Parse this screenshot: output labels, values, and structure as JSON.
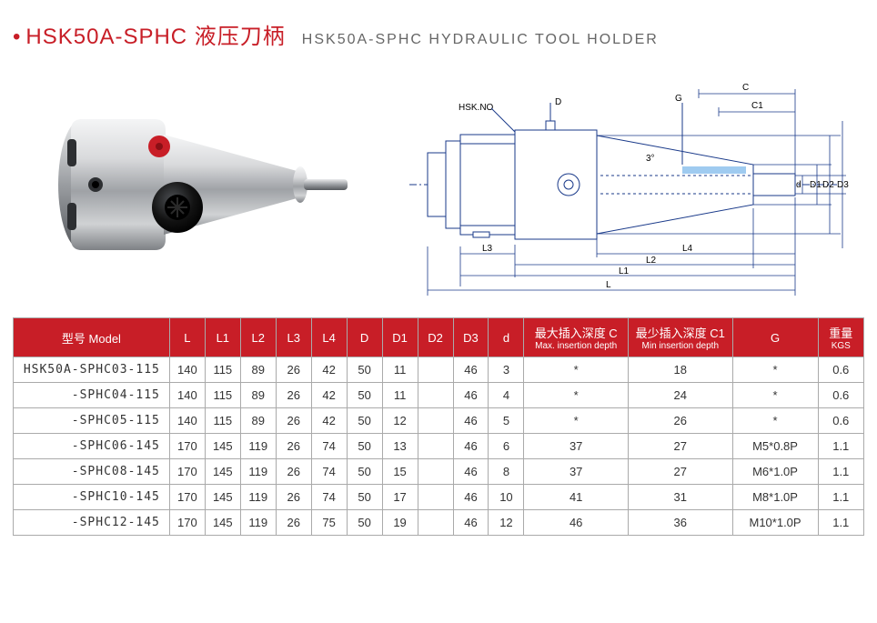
{
  "header": {
    "bullet": "•",
    "title_main": "HSK50A-SPHC 液压刀柄",
    "title_sub": "HSK50A-SPHC HYDRAULIC TOOL HOLDER"
  },
  "diagram": {
    "label_hsk": "HSK.NO",
    "label_D": "D",
    "label_G": "G",
    "label_C": "C",
    "label_C1": "C1",
    "label_d": "d",
    "label_D1": "D1",
    "label_D2": "D2",
    "label_D3": "D3",
    "label_3deg": "3°",
    "label_L4": "L4",
    "label_L2": "L2",
    "label_L1": "L1",
    "label_L3": "L3",
    "label_L": "L",
    "stroke": "#1a3a8a",
    "body_fill": "#e6e9f2"
  },
  "photo": {
    "body_fill1": "#e8e9ea",
    "body_fill2": "#b8babd",
    "body_fill3": "#6d7074",
    "red_dot": "#c81e27",
    "black": "#1a1a1a"
  },
  "table": {
    "columns": [
      {
        "key": "model",
        "label": "型号 Model",
        "sub": ""
      },
      {
        "key": "L",
        "label": "L",
        "sub": ""
      },
      {
        "key": "L1",
        "label": "L1",
        "sub": ""
      },
      {
        "key": "L2",
        "label": "L2",
        "sub": ""
      },
      {
        "key": "L3",
        "label": "L3",
        "sub": ""
      },
      {
        "key": "L4",
        "label": "L4",
        "sub": ""
      },
      {
        "key": "D",
        "label": "D",
        "sub": ""
      },
      {
        "key": "D1",
        "label": "D1",
        "sub": ""
      },
      {
        "key": "D2",
        "label": "D2",
        "sub": ""
      },
      {
        "key": "D3",
        "label": "D3",
        "sub": ""
      },
      {
        "key": "d",
        "label": "d",
        "sub": ""
      },
      {
        "key": "maxC",
        "label": "最大插入深度 C",
        "sub": "Max. insertion depth"
      },
      {
        "key": "minC1",
        "label": "最少插入深度 C1",
        "sub": "Min insertion depth"
      },
      {
        "key": "G",
        "label": "G",
        "sub": ""
      },
      {
        "key": "kgs",
        "label": "重量",
        "sub": "KGS"
      }
    ],
    "rows": [
      {
        "model": "HSK50A-SPHC03-115",
        "L": "140",
        "L1": "115",
        "L2": "89",
        "L3": "26",
        "L4": "42",
        "D": "50",
        "D1": "11",
        "D2": "",
        "D3": "46",
        "d": "3",
        "maxC": "*",
        "minC1": "18",
        "G": "*",
        "kgs": "0.6"
      },
      {
        "model": "-SPHC04-115",
        "L": "140",
        "L1": "115",
        "L2": "89",
        "L3": "26",
        "L4": "42",
        "D": "50",
        "D1": "11",
        "D2": "",
        "D3": "46",
        "d": "4",
        "maxC": "*",
        "minC1": "24",
        "G": "*",
        "kgs": "0.6"
      },
      {
        "model": "-SPHC05-115",
        "L": "140",
        "L1": "115",
        "L2": "89",
        "L3": "26",
        "L4": "42",
        "D": "50",
        "D1": "12",
        "D2": "",
        "D3": "46",
        "d": "5",
        "maxC": "*",
        "minC1": "26",
        "G": "*",
        "kgs": "0.6"
      },
      {
        "model": "-SPHC06-145",
        "L": "170",
        "L1": "145",
        "L2": "119",
        "L3": "26",
        "L4": "74",
        "D": "50",
        "D1": "13",
        "D2": "",
        "D3": "46",
        "d": "6",
        "maxC": "37",
        "minC1": "27",
        "G": "M5*0.8P",
        "kgs": "1.1"
      },
      {
        "model": "-SPHC08-145",
        "L": "170",
        "L1": "145",
        "L2": "119",
        "L3": "26",
        "L4": "74",
        "D": "50",
        "D1": "15",
        "D2": "",
        "D3": "46",
        "d": "8",
        "maxC": "37",
        "minC1": "27",
        "G": "M6*1.0P",
        "kgs": "1.1"
      },
      {
        "model": "-SPHC10-145",
        "L": "170",
        "L1": "145",
        "L2": "119",
        "L3": "26",
        "L4": "74",
        "D": "50",
        "D1": "17",
        "D2": "",
        "D3": "46",
        "d": "10",
        "maxC": "41",
        "minC1": "31",
        "G": "M8*1.0P",
        "kgs": "1.1"
      },
      {
        "model": "-SPHC12-145",
        "L": "170",
        "L1": "145",
        "L2": "119",
        "L3": "26",
        "L4": "75",
        "D": "50",
        "D1": "19",
        "D2": "",
        "D3": "46",
        "d": "12",
        "maxC": "46",
        "minC1": "36",
        "G": "M10*1.0P",
        "kgs": "1.1"
      }
    ],
    "header_bg": "#c81e27",
    "header_fg": "#ffffff",
    "cell_bg": "#ffffff",
    "border": "#aaaaaa"
  }
}
